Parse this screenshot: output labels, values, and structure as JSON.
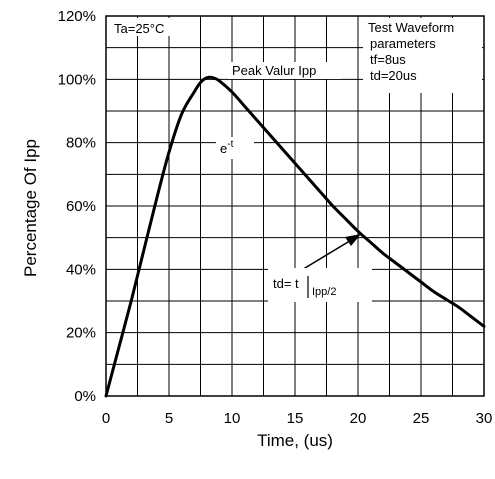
{
  "chart_data": {
    "type": "line",
    "title": "",
    "xlabel": "Time, (us)",
    "ylabel": "Percentage Of Ipp",
    "xlim": [
      0,
      30
    ],
    "ylim": [
      0,
      120
    ],
    "x_ticks": [
      "0",
      "5",
      "10",
      "15",
      "20",
      "25",
      "30"
    ],
    "y_ticks": [
      "0%",
      "20%",
      "40%",
      "60%",
      "80%",
      "100%",
      "120%"
    ],
    "grid": true,
    "series": [
      {
        "x": [
          0,
          1,
          2,
          3,
          4,
          5,
          6,
          7,
          7.5,
          8,
          8.5,
          9,
          10,
          11,
          12,
          13,
          14,
          15,
          16,
          17,
          18,
          19,
          20,
          21,
          22,
          23,
          24,
          25,
          26,
          27,
          28,
          29,
          30
        ],
        "y": [
          0,
          15,
          30,
          46,
          62,
          77,
          89,
          96,
          99,
          100.5,
          100.5,
          99.5,
          96,
          91.5,
          87,
          82.5,
          78,
          73.5,
          69,
          64.5,
          60,
          56,
          52,
          48.5,
          45,
          42,
          39,
          36,
          33,
          30.5,
          28,
          25,
          22
        ]
      }
    ],
    "annotations": {
      "ambient": "Ta=25°C",
      "peak": "Peak Valur Ipp",
      "decay_base": "e",
      "decay_exp": "-t",
      "params_title": "Test Waveform",
      "params_sub": "parameters",
      "tf": "tf=8us",
      "td": "td=20us",
      "td_label": "td= t",
      "td_sub": "Ipp/2"
    }
  }
}
